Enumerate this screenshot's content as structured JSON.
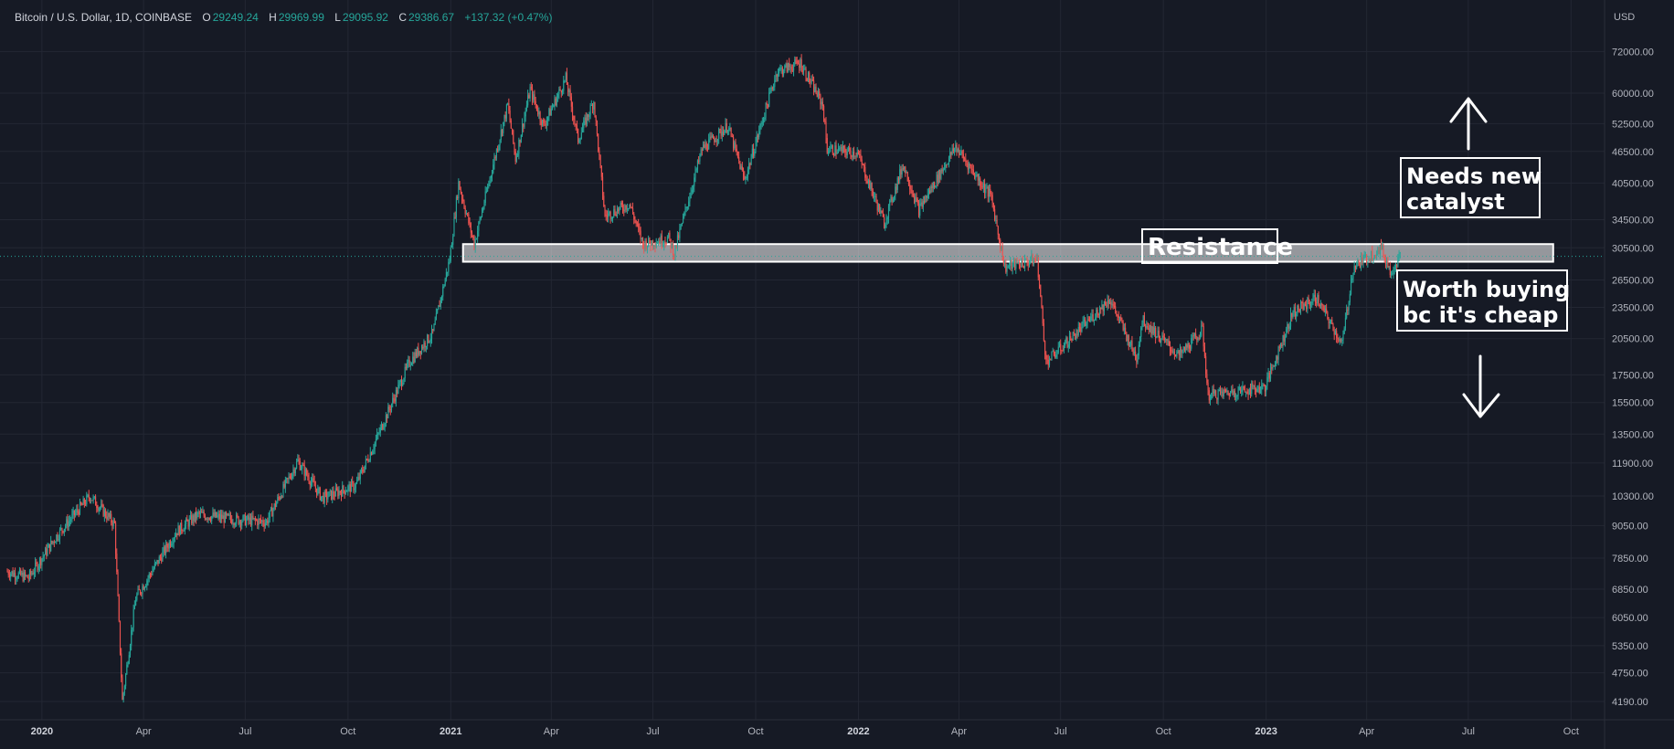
{
  "header": {
    "symbol": "Bitcoin / U.S. Dollar, 1D, COINBASE",
    "open_label": "O",
    "open": "29249.24",
    "high_label": "H",
    "high": "29969.99",
    "low_label": "L",
    "low": "29095.92",
    "close_label": "C",
    "close": "29386.67",
    "change": "+137.32 (+0.47%)"
  },
  "colors": {
    "background": "#161a25",
    "grid": "#232733",
    "up": "#26a69a",
    "down": "#ef5350",
    "text": "#b2b5be",
    "annotation": "#ffffff"
  },
  "chart_data": {
    "type": "candlestick",
    "title": "",
    "currency_label": "USD",
    "y_scale": "log",
    "ylim": [
      3900,
      80000
    ],
    "xlim": [
      "2019-12-01",
      "2023-10-31"
    ],
    "y_ticks": [
      {
        "v": 72000,
        "label": "72000.00"
      },
      {
        "v": 60000,
        "label": "60000.00"
      },
      {
        "v": 52500,
        "label": "52500.00"
      },
      {
        "v": 46500,
        "label": "46500.00"
      },
      {
        "v": 40500,
        "label": "40500.00"
      },
      {
        "v": 34500,
        "label": "34500.00"
      },
      {
        "v": 30500,
        "label": "30500.00"
      },
      {
        "v": 26500,
        "label": "26500.00"
      },
      {
        "v": 23500,
        "label": "23500.00"
      },
      {
        "v": 20500,
        "label": "20500.00"
      },
      {
        "v": 17500,
        "label": "17500.00"
      },
      {
        "v": 15500,
        "label": "15500.00"
      },
      {
        "v": 13500,
        "label": "13500.00"
      },
      {
        "v": 11900,
        "label": "11900.00"
      },
      {
        "v": 10300,
        "label": "10300.00"
      },
      {
        "v": 9050,
        "label": "9050.00"
      },
      {
        "v": 7850,
        "label": "7850.00"
      },
      {
        "v": 6850,
        "label": "6850.00"
      },
      {
        "v": 6050,
        "label": "6050.00"
      },
      {
        "v": 5350,
        "label": "5350.00"
      },
      {
        "v": 4750,
        "label": "4750.00"
      },
      {
        "v": 4190,
        "label": "4190.00"
      }
    ],
    "x_ticks": [
      {
        "d": "2020-01-01",
        "label": "2020",
        "bold": true
      },
      {
        "d": "2020-04-01",
        "label": "Apr"
      },
      {
        "d": "2020-07-01",
        "label": "Jul"
      },
      {
        "d": "2020-10-01",
        "label": "Oct"
      },
      {
        "d": "2021-01-01",
        "label": "2021",
        "bold": true
      },
      {
        "d": "2021-04-01",
        "label": "Apr"
      },
      {
        "d": "2021-07-01",
        "label": "Jul"
      },
      {
        "d": "2021-10-01",
        "label": "Oct"
      },
      {
        "d": "2022-01-01",
        "label": "2022",
        "bold": true
      },
      {
        "d": "2022-04-01",
        "label": "Apr"
      },
      {
        "d": "2022-07-01",
        "label": "Jul"
      },
      {
        "d": "2022-10-01",
        "label": "Oct"
      },
      {
        "d": "2023-01-01",
        "label": "2023",
        "bold": true
      },
      {
        "d": "2023-04-01",
        "label": "Apr"
      },
      {
        "d": "2023-07-01",
        "label": "Jul"
      },
      {
        "d": "2023-10-01",
        "label": "Oct"
      }
    ],
    "price_path": [
      [
        "2019-12-01",
        7400
      ],
      [
        "2019-12-20",
        7200
      ],
      [
        "2020-01-15",
        8700
      ],
      [
        "2020-02-13",
        10300
      ],
      [
        "2020-03-06",
        9100
      ],
      [
        "2020-03-13",
        4200
      ],
      [
        "2020-03-25",
        6600
      ],
      [
        "2020-04-30",
        8800
      ],
      [
        "2020-05-20",
        9500
      ],
      [
        "2020-06-20",
        9300
      ],
      [
        "2020-07-20",
        9200
      ],
      [
        "2020-08-17",
        12000
      ],
      [
        "2020-09-08",
        10200
      ],
      [
        "2020-10-08",
        10800
      ],
      [
        "2020-10-25",
        13000
      ],
      [
        "2020-11-25",
        18500
      ],
      [
        "2020-12-16",
        21000
      ],
      [
        "2020-12-31",
        29000
      ],
      [
        "2021-01-08",
        40500
      ],
      [
        "2021-01-22",
        31000
      ],
      [
        "2021-02-08",
        44000
      ],
      [
        "2021-02-21",
        57000
      ],
      [
        "2021-02-28",
        45000
      ],
      [
        "2021-03-13",
        61000
      ],
      [
        "2021-03-25",
        52000
      ],
      [
        "2021-04-14",
        64000
      ],
      [
        "2021-04-25",
        49000
      ],
      [
        "2021-05-09",
        58000
      ],
      [
        "2021-05-19",
        35000
      ],
      [
        "2021-06-10",
        37000
      ],
      [
        "2021-06-22",
        31000
      ],
      [
        "2021-07-15",
        31800
      ],
      [
        "2021-07-20",
        29800
      ],
      [
        "2021-08-14",
        47000
      ],
      [
        "2021-09-06",
        52000
      ],
      [
        "2021-09-21",
        41000
      ],
      [
        "2021-10-20",
        66000
      ],
      [
        "2021-11-10",
        68500
      ],
      [
        "2021-11-30",
        57000
      ],
      [
        "2021-12-04",
        47000
      ],
      [
        "2021-12-31",
        46200
      ],
      [
        "2022-01-24",
        34000
      ],
      [
        "2022-02-10",
        44000
      ],
      [
        "2022-02-24",
        36000
      ],
      [
        "2022-03-29",
        47500
      ],
      [
        "2022-04-30",
        38000
      ],
      [
        "2022-05-12",
        28000
      ],
      [
        "2022-06-10",
        29000
      ],
      [
        "2022-06-18",
        18500
      ],
      [
        "2022-07-10",
        20500
      ],
      [
        "2022-08-14",
        24400
      ],
      [
        "2022-09-07",
        18800
      ],
      [
        "2022-09-12",
        22300
      ],
      [
        "2022-10-15",
        19000
      ],
      [
        "2022-11-05",
        21300
      ],
      [
        "2022-11-10",
        16000
      ],
      [
        "2022-12-31",
        16600
      ],
      [
        "2023-01-25",
        23000
      ],
      [
        "2023-02-15",
        24500
      ],
      [
        "2023-03-10",
        20000
      ],
      [
        "2023-03-20",
        28000
      ],
      [
        "2023-04-14",
        30500
      ],
      [
        "2023-04-22",
        27500
      ],
      [
        "2023-05-01",
        29387
      ]
    ],
    "annotations": {
      "resistance_zone": {
        "low": 28700,
        "high": 31000,
        "from": "2021-01-12",
        "to": "2023-09-15"
      },
      "resistance_label": "Resistance",
      "upper_note": [
        "Needs new",
        "catalyst"
      ],
      "lower_note": [
        "Worth buying",
        "bc it's cheap"
      ],
      "last_price": 29386.67
    }
  }
}
